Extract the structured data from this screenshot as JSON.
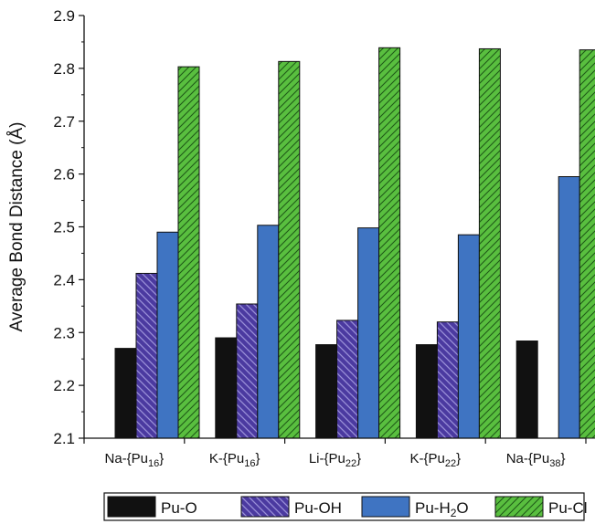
{
  "chart_data": {
    "type": "bar",
    "title": "",
    "xlabel": "",
    "ylabel": "Average Bond Distance (Å)",
    "ylim": [
      2.1,
      2.9
    ],
    "yticks": [
      "2.1",
      "2.2",
      "2.3",
      "2.4",
      "2.5",
      "2.6",
      "2.7",
      "2.8",
      "2.9"
    ],
    "grid": false,
    "legend_position": "bottom",
    "categories": [
      {
        "prefix": "Na-{Pu",
        "sub": "16",
        "suffix": "}"
      },
      {
        "prefix": "K-{Pu",
        "sub": "16",
        "suffix": "}"
      },
      {
        "prefix": "Li-{Pu",
        "sub": "22",
        "suffix": "}"
      },
      {
        "prefix": "K-{Pu",
        "sub": "22",
        "suffix": "}"
      },
      {
        "prefix": "Na-{Pu",
        "sub": "38",
        "suffix": "}"
      }
    ],
    "series": [
      {
        "name": "Pu-O",
        "name_main": "Pu-O",
        "name_sub": "",
        "color": "#111111",
        "pattern": "solid",
        "values": [
          2.27,
          2.29,
          2.277,
          2.277,
          2.284
        ]
      },
      {
        "name": "Pu-OH",
        "name_main": "Pu-OH",
        "name_sub": "",
        "color": "#4b3aa0",
        "pattern": "hatch-back",
        "values": [
          2.412,
          2.354,
          2.323,
          2.32,
          null
        ]
      },
      {
        "name": "Pu-H2O",
        "name_main": "Pu-H",
        "name_sub": "2",
        "name_tail": "O",
        "color": "#3f74c2",
        "pattern": "solid",
        "values": [
          2.49,
          2.503,
          2.498,
          2.485,
          2.595
        ]
      },
      {
        "name": "Pu-Cl",
        "name_main": "Pu-Cl",
        "name_sub": "",
        "color": "#59bf3f",
        "pattern": "hatch-forward",
        "values": [
          2.803,
          2.813,
          2.839,
          2.837,
          2.835
        ]
      }
    ]
  }
}
